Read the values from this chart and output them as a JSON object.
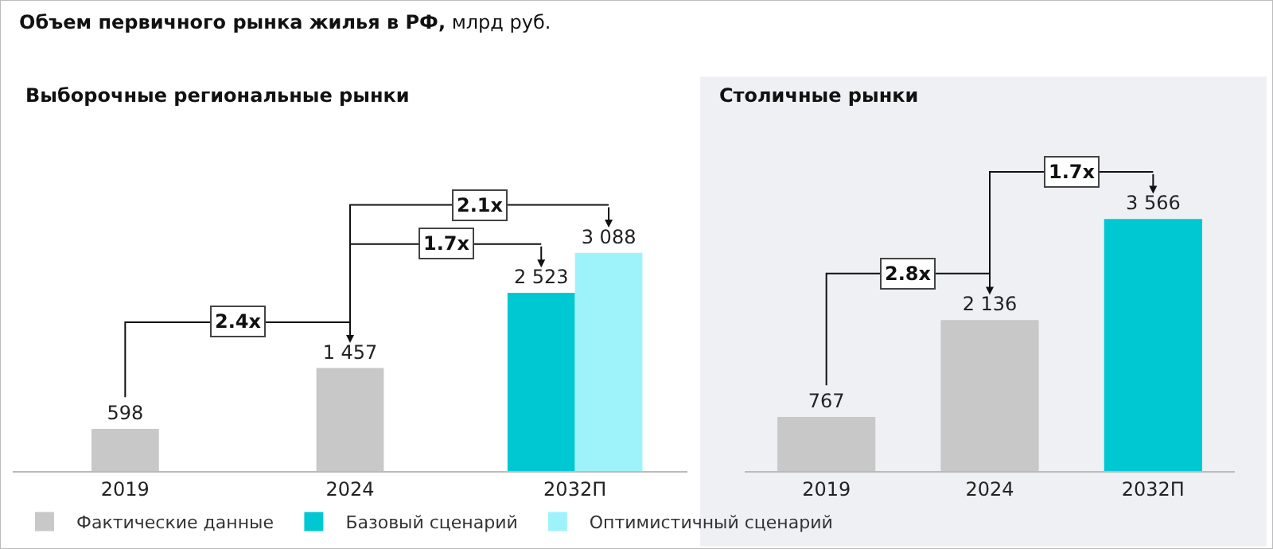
{
  "chart_data": [
    {
      "type": "bar",
      "title": "Выборочные региональные рынки",
      "categories": [
        "2019",
        "2024",
        "2032П"
      ],
      "legend": "bottom",
      "data_labels": true,
      "grid": false,
      "series": [
        {
          "name": "Фактические данные",
          "color": "#c8c8c8",
          "values": [
            598,
            1457,
            null
          ],
          "value_labels": [
            "598",
            "1 457",
            null
          ]
        },
        {
          "name": "Базовый сценарий",
          "color": "#00c8d2",
          "values": [
            null,
            null,
            2523
          ],
          "value_labels": [
            null,
            null,
            "2 523"
          ]
        },
        {
          "name": "Оптимистичный сценарий",
          "color": "#9ef3fb",
          "values": [
            null,
            null,
            3088
          ],
          "value_labels": [
            null,
            null,
            "3 088"
          ]
        }
      ],
      "annotations": [
        "Объем первичного рынка жилья в РФ,",
        "млрд руб.",
        "2.4x",
        "2.1x",
        "1.7x"
      ]
    },
    {
      "type": "bar",
      "title": "Столичные рынки",
      "categories": [
        "2019",
        "2024",
        "2032П"
      ],
      "legend": false,
      "data_labels": true,
      "grid": false,
      "series": [
        {
          "color": "#c8c8c8",
          "values": [
            767,
            2136,
            null
          ],
          "value_labels": [
            "767",
            "2 136",
            null
          ]
        },
        {
          "color": "#00c8d2",
          "values": [
            null,
            null,
            3566
          ],
          "value_labels": [
            null,
            null,
            "3 566"
          ]
        }
      ],
      "annotations": [
        "2.8x",
        "1.7x"
      ]
    }
  ]
}
